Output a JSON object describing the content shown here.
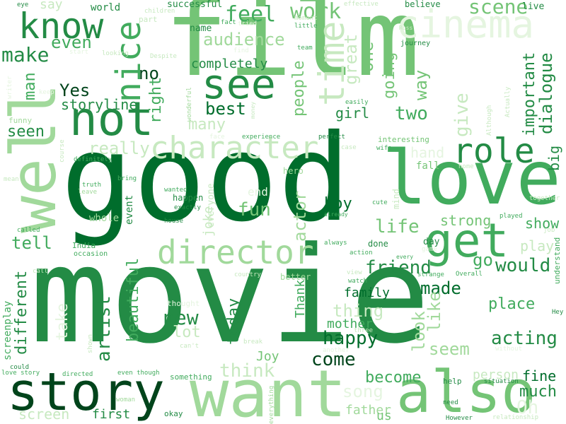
{
  "palette": [
    "#00441b",
    "#006d2c",
    "#238b45",
    "#41ab5d",
    "#74c476",
    "#a1d99b",
    "#c7e9c0",
    "#e5f5e0"
  ],
  "words": [
    {
      "text": "movie",
      "color": "#238b45"
    },
    {
      "text": "good",
      "color": "#006d2c"
    },
    {
      "text": "film",
      "color": "#74c476"
    },
    {
      "text": "well",
      "color": "#a1d99b"
    },
    {
      "text": "love",
      "color": "#41ab5d"
    },
    {
      "text": "want",
      "color": "#a1d99b"
    },
    {
      "text": "also",
      "color": "#74c476"
    },
    {
      "text": "story",
      "color": "#00441b"
    },
    {
      "text": "not",
      "color": "#238b45"
    },
    {
      "text": "character",
      "color": "#c7e9c0"
    },
    {
      "text": "director",
      "color": "#a1d99b"
    },
    {
      "text": "cinema",
      "color": "#e5f5e0"
    },
    {
      "text": "know",
      "color": "#238b45"
    },
    {
      "text": "see",
      "color": "#238b45"
    },
    {
      "text": "time",
      "color": "#c7e9c0"
    },
    {
      "text": "nice",
      "color": "#41ab5d"
    },
    {
      "text": "get",
      "color": "#41ab5d"
    },
    {
      "text": "role",
      "color": "#238b45"
    },
    {
      "text": "feel",
      "color": "#41ab5d"
    },
    {
      "text": "work",
      "color": "#74c476"
    },
    {
      "text": "scene",
      "color": "#74c476"
    },
    {
      "text": "make",
      "color": "#238b45"
    },
    {
      "text": "even",
      "color": "#41ab5d"
    },
    {
      "text": "audience",
      "color": "#a1d99b"
    },
    {
      "text": "completely",
      "color": "#238b45"
    },
    {
      "text": "great",
      "color": "#c7e9c0"
    },
    {
      "text": "one",
      "color": "#74c476"
    },
    {
      "text": "going",
      "color": "#74c476"
    },
    {
      "text": "way",
      "color": "#74c476"
    },
    {
      "text": "important",
      "color": "#238b45"
    },
    {
      "text": "dialogue",
      "color": "#238b45"
    },
    {
      "text": "big",
      "color": "#238b45"
    },
    {
      "text": "Yes",
      "color": "#00441b"
    },
    {
      "text": "no",
      "color": "#00441b"
    },
    {
      "text": "right",
      "color": "#41ab5d"
    },
    {
      "text": "best",
      "color": "#006d2c"
    },
    {
      "text": "many",
      "color": "#c7e9c0"
    },
    {
      "text": "storyline",
      "color": "#238b45"
    },
    {
      "text": "people",
      "color": "#74c476"
    },
    {
      "text": "two",
      "color": "#41ab5d"
    },
    {
      "text": "girl",
      "color": "#238b45"
    },
    {
      "text": "give",
      "color": "#c7e9c0"
    },
    {
      "text": "seen",
      "color": "#238b45"
    },
    {
      "text": "really",
      "color": "#c7e9c0"
    },
    {
      "text": "hand",
      "color": "#e5f5e0"
    },
    {
      "text": "man",
      "color": "#41ab5d"
    },
    {
      "text": "fun",
      "color": "#74c476"
    },
    {
      "text": "actor",
      "color": "#a1d99b"
    },
    {
      "text": "life",
      "color": "#74c476"
    },
    {
      "text": "boy",
      "color": "#006d2c"
    },
    {
      "text": "strong",
      "color": "#74c476"
    },
    {
      "text": "show",
      "color": "#41ab5d"
    },
    {
      "text": "tell",
      "color": "#41ab5d"
    },
    {
      "text": "joke",
      "color": "#c7e9c0"
    },
    {
      "text": "friend",
      "color": "#238b45"
    },
    {
      "text": "would",
      "color": "#238b45"
    },
    {
      "text": "go",
      "color": "#41ab5d"
    },
    {
      "text": "play",
      "color": "#c7e9c0"
    },
    {
      "text": "made",
      "color": "#006d2c"
    },
    {
      "text": "different",
      "color": "#238b45"
    },
    {
      "text": "artist",
      "color": "#238b45"
    },
    {
      "text": "take",
      "color": "#e5f5e0"
    },
    {
      "text": "beautiful",
      "color": "#41ab5d"
    },
    {
      "text": "new",
      "color": "#238b45"
    },
    {
      "text": "lot",
      "color": "#c7e9c0"
    },
    {
      "text": "today",
      "color": "#238b45"
    },
    {
      "text": "Thank",
      "color": "#41ab5d"
    },
    {
      "text": "family",
      "color": "#006d2c"
    },
    {
      "text": "thing",
      "color": "#c7e9c0"
    },
    {
      "text": "look",
      "color": "#a1d99b"
    },
    {
      "text": "like",
      "color": "#a1d99b"
    },
    {
      "text": "place",
      "color": "#41ab5d"
    },
    {
      "text": "acting",
      "color": "#238b45"
    },
    {
      "text": "happy",
      "color": "#006d2c"
    },
    {
      "text": "mother",
      "color": "#41ab5d"
    },
    {
      "text": "seem",
      "color": "#a1d99b"
    },
    {
      "text": "come",
      "color": "#00441b"
    },
    {
      "text": "think",
      "color": "#c7e9c0"
    },
    {
      "text": "become",
      "color": "#41ab5d"
    },
    {
      "text": "person",
      "color": "#c7e9c0"
    },
    {
      "text": "fine",
      "color": "#006d2c"
    },
    {
      "text": "much",
      "color": "#238b45"
    },
    {
      "text": "song",
      "color": "#e5f5e0"
    },
    {
      "text": "Oh",
      "color": "#e5f5e0"
    },
    {
      "text": "screen",
      "color": "#c7e9c0"
    },
    {
      "text": "first",
      "color": "#238b45"
    },
    {
      "text": "father",
      "color": "#a1d99b"
    },
    {
      "text": "Joy",
      "color": "#74c476"
    },
    {
      "text": "us",
      "color": "#74c476"
    },
    {
      "text": "screenplay",
      "color": "#41ab5d"
    },
    {
      "text": "India",
      "color": "#41ab5d"
    },
    {
      "text": "occasion",
      "color": "#41ab5d"
    },
    {
      "text": "whole",
      "color": "#a1d99b"
    },
    {
      "text": "event",
      "color": "#238b45"
    },
    {
      "text": "everyone",
      "color": "#c7e9c0"
    },
    {
      "text": "hero",
      "color": "#a1d99b"
    },
    {
      "text": "fall",
      "color": "#74c476"
    },
    {
      "text": "day",
      "color": "#238b45"
    },
    {
      "text": "done",
      "color": "#238b45"
    },
    {
      "text": "always",
      "color": "#41ab5d"
    },
    {
      "text": "interesting",
      "color": "#74c476"
    },
    {
      "text": "experience",
      "color": "#41ab5d"
    },
    {
      "text": "perfect",
      "color": "#238b45"
    },
    {
      "text": "mind",
      "color": "#c7e9c0"
    },
    {
      "text": "cute",
      "color": "#41ab5d"
    },
    {
      "text": "already",
      "color": "#41ab5d"
    },
    {
      "text": "house",
      "color": "#238b45"
    },
    {
      "text": "exactly",
      "color": "#238b45"
    },
    {
      "text": "happen",
      "color": "#238b45"
    },
    {
      "text": "wanted",
      "color": "#41ab5d"
    },
    {
      "text": "end",
      "color": "#e5f5e0"
    },
    {
      "text": "say",
      "color": "#c7e9c0"
    },
    {
      "text": "world",
      "color": "#238b45"
    },
    {
      "text": "eye",
      "color": "#238b45"
    },
    {
      "text": "children",
      "color": "#c7e9c0"
    },
    {
      "text": "part",
      "color": "#c7e9c0"
    },
    {
      "text": "successful",
      "color": "#238b45"
    },
    {
      "text": "name",
      "color": "#238b45"
    },
    {
      "text": "fact",
      "color": "#41ab5d"
    },
    {
      "text": "tried",
      "color": "#e5f5e0"
    },
    {
      "text": "moment",
      "color": "#c7e9c0"
    },
    {
      "text": "little",
      "color": "#41ab5d"
    },
    {
      "text": "effective",
      "color": "#c7e9c0"
    },
    {
      "text": "believe",
      "color": "#238b45"
    },
    {
      "text": "live",
      "color": "#238b45"
    },
    {
      "text": "Ross",
      "color": "#c7e9c0"
    },
    {
      "text": "journey",
      "color": "#238b45"
    },
    {
      "text": "start",
      "color": "#e5f5e0"
    },
    {
      "text": "looking",
      "color": "#c7e9c0"
    },
    {
      "text": "Despite",
      "color": "#c7e9c0"
    },
    {
      "text": "team",
      "color": "#41ab5d"
    },
    {
      "text": "find",
      "color": "#e5f5e0"
    },
    {
      "text": "writer",
      "color": "#e5f5e0"
    },
    {
      "text": "keep",
      "color": "#e5f5e0"
    },
    {
      "text": "wonderful",
      "color": "#a1d99b"
    },
    {
      "text": "money",
      "color": "#c7e9c0"
    },
    {
      "text": "easily",
      "color": "#41ab5d"
    },
    {
      "text": "Although",
      "color": "#c7e9c0"
    },
    {
      "text": "Actually",
      "color": "#c7e9c0"
    },
    {
      "text": "funny",
      "color": "#a1d99b"
    },
    {
      "text": "course",
      "color": "#c7e9c0"
    },
    {
      "text": "definitely",
      "color": "#41ab5d"
    },
    {
      "text": "truth",
      "color": "#41ab5d"
    },
    {
      "text": "leave",
      "color": "#a1d99b"
    },
    {
      "text": "mean",
      "color": "#c7e9c0"
    },
    {
      "text": "bring",
      "color": "#41ab5d"
    },
    {
      "text": "face",
      "color": "#e5f5e0"
    },
    {
      "text": "case",
      "color": "#c7e9c0"
    },
    {
      "text": "wife",
      "color": "#41ab5d"
    },
    {
      "text": "home",
      "color": "#c7e9c0"
    },
    {
      "text": "together",
      "color": "#c7e9c0"
    },
    {
      "text": "played",
      "color": "#41ab5d"
    },
    {
      "text": "job",
      "color": "#c7e9c0"
    },
    {
      "text": "game",
      "color": "#e5f5e0"
    },
    {
      "text": "understand",
      "color": "#41ab5d"
    },
    {
      "text": "called",
      "color": "#41ab5d"
    },
    {
      "text": "call",
      "color": "#c7e9c0"
    },
    {
      "text": "country",
      "color": "#c7e9c0"
    },
    {
      "text": "better",
      "color": "#a1d99b"
    },
    {
      "text": "view",
      "color": "#c7e9c0"
    },
    {
      "text": "watch",
      "color": "#41ab5d"
    },
    {
      "text": "action",
      "color": "#41ab5d"
    },
    {
      "text": "every",
      "color": "#41ab5d"
    },
    {
      "text": "strange",
      "color": "#41ab5d"
    },
    {
      "text": "Overall",
      "color": "#41ab5d"
    },
    {
      "text": "relationship",
      "color": "#c7e9c0"
    },
    {
      "text": "Hey",
      "color": "#238b45"
    },
    {
      "text": "thought",
      "color": "#e5f5e0"
    },
    {
      "text": "can't",
      "color": "#c7e9c0"
    },
    {
      "text": "break",
      "color": "#c7e9c0"
    },
    {
      "text": "three",
      "color": "#c7e9c0"
    },
    {
      "text": "another",
      "color": "#e5f5e0"
    },
    {
      "text": "shown",
      "color": "#c7e9c0"
    },
    {
      "text": "without",
      "color": "#e5f5e0"
    },
    {
      "text": "could",
      "color": "#238b45"
    },
    {
      "text": "love story",
      "color": "#41ab5d"
    },
    {
      "text": "directed",
      "color": "#41ab5d"
    },
    {
      "text": "even though",
      "color": "#41ab5d"
    },
    {
      "text": "something",
      "color": "#41ab5d"
    },
    {
      "text": "woman",
      "color": "#a1d99b"
    },
    {
      "text": "okay",
      "color": "#238b45"
    },
    {
      "text": "everything",
      "color": "#a1d99b"
    },
    {
      "text": "need",
      "color": "#238b45"
    },
    {
      "text": "However",
      "color": "#238b45"
    },
    {
      "text": "situation",
      "color": "#238b45"
    },
    {
      "text": "help",
      "color": "#238b45"
    }
  ]
}
